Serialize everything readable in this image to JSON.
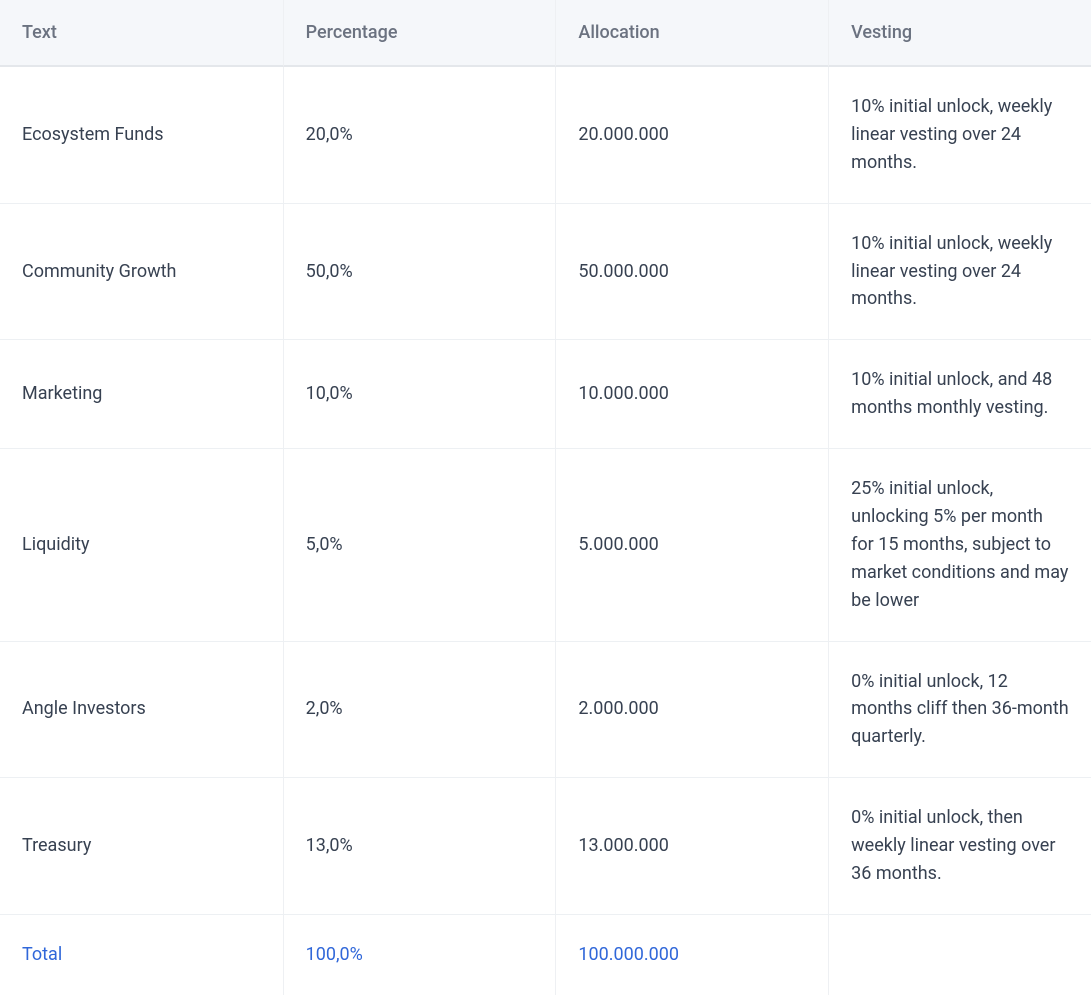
{
  "table": {
    "type": "table",
    "background_color": "#ffffff",
    "header_background": "#f5f7fa",
    "header_text_color": "#6b7280",
    "body_text_color": "#374151",
    "total_text_color": "#3067d9",
    "row_border_color": "#edf0f3",
    "column_border_color": "#eef0f3",
    "header_border_color": "#e4e7eb",
    "header_fontsize": 18,
    "body_fontsize": 18,
    "column_widths_pct": [
      26,
      25,
      25,
      24
    ],
    "columns": [
      {
        "key": "text",
        "label": "Text"
      },
      {
        "key": "percentage",
        "label": "Percentage"
      },
      {
        "key": "allocation",
        "label": "Allocation"
      },
      {
        "key": "vesting",
        "label": "Vesting"
      }
    ],
    "rows": [
      {
        "text": "Ecosystem Funds",
        "percentage": "20,0%",
        "allocation": "20.000.000",
        "vesting": "10% initial unlock, weekly linear vesting over 24 months."
      },
      {
        "text": "Community Growth",
        "percentage": "50,0%",
        "allocation": "50.000.000",
        "vesting": "10% initial unlock, weekly linear vesting over 24 months."
      },
      {
        "text": "Marketing",
        "percentage": "10,0%",
        "allocation": "10.000.000",
        "vesting": "10% initial unlock, and 48 months monthly vesting."
      },
      {
        "text": "Liquidity",
        "percentage": "5,0%",
        "allocation": "5.000.000",
        "vesting": "25% initial unlock, unlocking 5% per month for 15 months, subject to market conditions and may be lower"
      },
      {
        "text": "Angle Investors",
        "percentage": "2,0%",
        "allocation": "2.000.000",
        "vesting": "0% initial unlock, 12 months cliff then 36-month quarterly."
      },
      {
        "text": "Treasury",
        "percentage": "13,0%",
        "allocation": "13.000.000",
        "vesting": "0% initial unlock, then weekly linear vesting over 36 months."
      }
    ],
    "total": {
      "text": "Total",
      "percentage": "100,0%",
      "allocation": "100.000.000",
      "vesting": ""
    }
  }
}
